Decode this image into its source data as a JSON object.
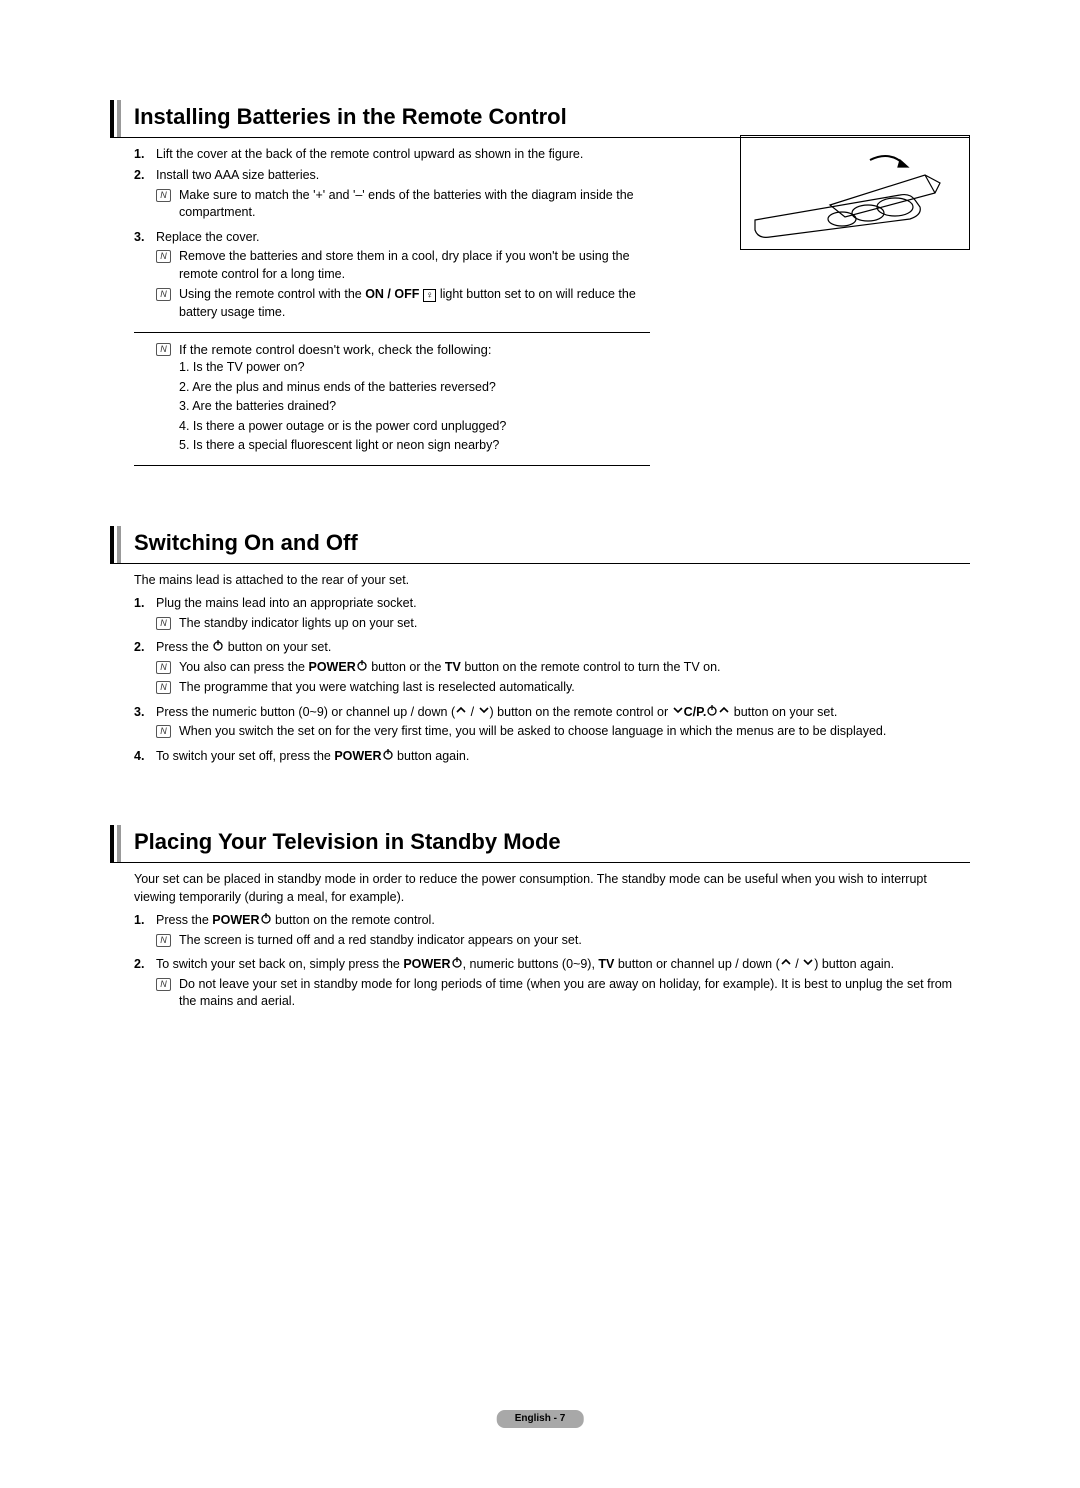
{
  "page": {
    "footer": "English - 7",
    "background": "#ffffff",
    "text_color": "#000000"
  },
  "section1": {
    "title": "Installing Batteries in the Remote Control",
    "items": [
      {
        "num": "1.",
        "text": "Lift the cover at the back of the remote control upward as shown in the figure."
      },
      {
        "num": "2.",
        "text": "Install two AAA size batteries.",
        "notes": [
          "Make sure to match the '+' and '–' ends of the batteries with the diagram inside the compartment."
        ]
      },
      {
        "num": "3.",
        "text": "Replace the cover.",
        "notes": [
          "Remove the batteries and store them in a cool, dry place if you won't be using the remote control for a long time.",
          "Using the remote control with the <b>ON / OFF</b> <light></light> light button set to on will reduce the battery usage time."
        ]
      }
    ],
    "trouble_intro": "If the remote control doesn't work, check the following:",
    "trouble": [
      "1. Is the TV power on?",
      "2. Are the plus and minus ends of the batteries reversed?",
      "3. Are the batteries drained?",
      "4. Is there a power outage or is the power cord unplugged?",
      "5. Is there a special fluorescent light or neon sign nearby?"
    ]
  },
  "section2": {
    "title": "Switching On and Off",
    "intro": "The mains lead is attached to the rear of your set.",
    "items": [
      {
        "num": "1.",
        "text": "Plug the mains lead into an appropriate socket.",
        "notes": [
          "The standby indicator lights up on your set."
        ]
      },
      {
        "num": "2.",
        "text": "Press the <power></power> button on your set.",
        "notes": [
          "You also can press the <b>POWER</b><power></power> button or the <b>TV</b> button on the remote control to turn the TV on.",
          "The programme that you were watching last is reselected automatically."
        ]
      },
      {
        "num": "3.",
        "text": "Press the numeric button (0~9) or channel up / down (<up></up> / <down></down>) button on the remote control or <down></down><b>C/P.</b><power></power><up></up> button on your set.",
        "notes": [
          "When you switch the set on for the very first time, you will be asked to choose language in which the menus are to be displayed."
        ]
      },
      {
        "num": "4.",
        "text": "To switch your set off, press the <b>POWER</b><power></power> button again."
      }
    ]
  },
  "section3": {
    "title": "Placing Your Television in Standby Mode",
    "intro": "Your set can be placed in standby mode in order to reduce the power consumption. The standby mode can be useful when you wish to interrupt viewing temporarily (during a meal, for example).",
    "items": [
      {
        "num": "1.",
        "text": "Press the <b>POWER</b><power></power> button on the remote control.",
        "notes": [
          "The screen is turned off and a red standby indicator appears on your set."
        ]
      },
      {
        "num": "2.",
        "text": "To switch your set back on, simply press the <b>POWER</b><power></power>, numeric buttons (0~9), <b>TV</b> button or channel up / down (<up></up> / <down></down>) button again.",
        "notes": [
          "Do not leave your set in standby mode for long periods of time (when you are away on holiday, for example). It is best to unplug the set from the mains and aerial."
        ]
      }
    ]
  },
  "icons": {
    "note_glyph": "N",
    "light_glyph": "♀"
  }
}
